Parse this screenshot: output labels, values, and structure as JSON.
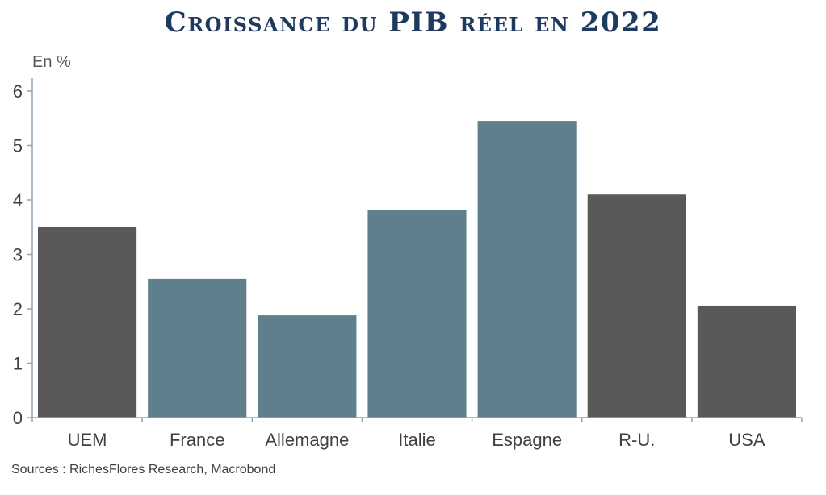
{
  "chart_data": {
    "type": "bar",
    "title": "Croissance du PIB réel en 2022",
    "unit_label": "En %",
    "categories": [
      "UEM",
      "France",
      "Allemagne",
      "Italie",
      "Espagne",
      "R-U.",
      "USA"
    ],
    "values": [
      3.5,
      2.55,
      1.88,
      3.82,
      5.45,
      4.1,
      2.06
    ],
    "bar_colors": [
      "#595959",
      "#5e7f8c",
      "#5e7f8c",
      "#5e7f8c",
      "#5e7f8c",
      "#595959",
      "#595959"
    ],
    "ylim": [
      0,
      6
    ],
    "yticks": [
      0,
      1,
      2,
      3,
      4,
      5,
      6
    ],
    "grid": false,
    "source": "Sources : RichesFlores Research, Macrobond"
  },
  "colors": {
    "title": "#1f3a5f",
    "text": "#404040",
    "axis": "#8fa3b3",
    "unit": "#595959"
  }
}
